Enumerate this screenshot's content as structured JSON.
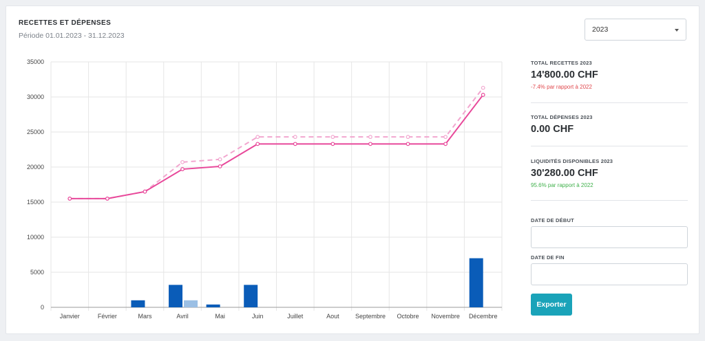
{
  "header": {
    "title": "RECETTES ET DÉPENSES",
    "period": "Période 01.01.2023 - 31.12.2023"
  },
  "year_select": {
    "value": "2023"
  },
  "stats": {
    "recettes": {
      "label": "TOTAL RECETTES 2023",
      "value": "14'800.00 CHF",
      "note": "-7.4% par rapport à 2022",
      "note_color": "#e0474c"
    },
    "depenses": {
      "label": "TOTAL DÉPENSES 2023",
      "value": "0.00 CHF"
    },
    "liquidites": {
      "label": "LIQUIDITÉS DISPONIBLES 2023",
      "value": "30'280.00 CHF",
      "note": "95.6% par rapport à 2022",
      "note_color": "#3fb04b"
    }
  },
  "filters": {
    "start_label": "DATE DE DÉBUT",
    "end_label": "DATE DE FIN",
    "start_value": "",
    "end_value": "",
    "export_label": "Exporter"
  },
  "chart_data": {
    "type": "bar",
    "categories": [
      "Janvier",
      "Février",
      "Mars",
      "Avril",
      "Mai",
      "Juin",
      "Juillet",
      "Aout",
      "Septembre",
      "Octobre",
      "Novembre",
      "Décembre"
    ],
    "ylim": [
      0,
      35000
    ],
    "yticks": [
      0,
      5000,
      10000,
      15000,
      20000,
      25000,
      30000,
      35000
    ],
    "grid": true,
    "bars": [
      {
        "values": [
          0,
          0,
          1000,
          3200,
          400,
          3200,
          0,
          0,
          0,
          0,
          0,
          7000
        ],
        "color": "#0a5cb8"
      },
      {
        "values": [
          0,
          0,
          0,
          1000,
          0,
          0,
          0,
          0,
          0,
          0,
          0,
          0
        ],
        "color": "#9bbfe4"
      }
    ],
    "lines": [
      {
        "values": [
          15500,
          15500,
          16500,
          19700,
          20100,
          23300,
          23300,
          23300,
          23300,
          23300,
          23300,
          30300
        ],
        "color": "#e8489a",
        "dashed": false
      },
      {
        "values": [
          15500,
          15500,
          16500,
          20700,
          21100,
          24300,
          24300,
          24300,
          24300,
          24300,
          24300,
          31300
        ],
        "color": "#f2a6cf",
        "dashed": true
      }
    ]
  }
}
